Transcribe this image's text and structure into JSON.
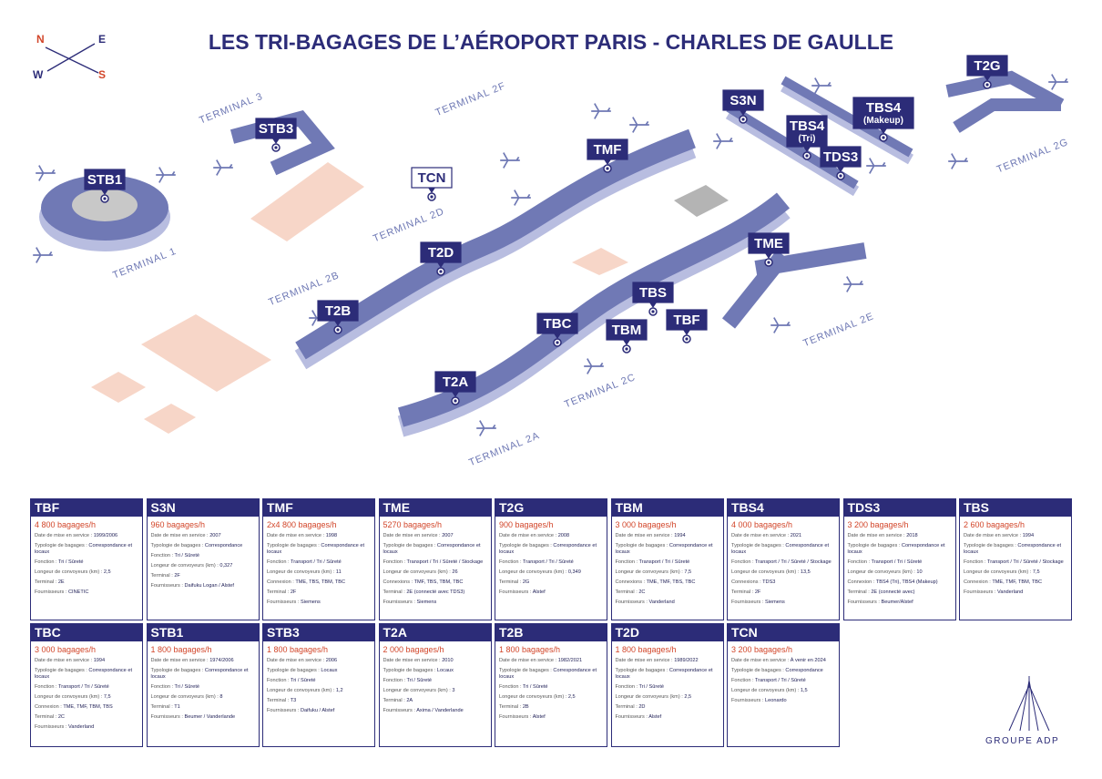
{
  "header": {
    "title": "LES TRI-BAGAGES DE L’AÉROPORT PARIS - CHARLES DE GAULLE"
  },
  "compass": {
    "n": "N",
    "e": "E",
    "w": "W",
    "s": "S"
  },
  "map": {
    "terminals": [
      "TERMINAL 3",
      "TERMINAL 2F",
      "TERMINAL 1",
      "TERMINAL 2D",
      "TERMINAL 2B",
      "TERMINAL 2E",
      "TERMINAL 2C",
      "TERMINAL 2A",
      "TERMINAL 2G"
    ],
    "markers": [
      {
        "label": "STB1"
      },
      {
        "label": "STB3"
      },
      {
        "label": "TCN"
      },
      {
        "label": "TMF"
      },
      {
        "label": "T2D"
      },
      {
        "label": "T2B"
      },
      {
        "label": "T2A"
      },
      {
        "label": "TBC"
      },
      {
        "label": "TBM"
      },
      {
        "label": "TBS"
      },
      {
        "label": "TBF"
      },
      {
        "label": "TME"
      },
      {
        "label": "S3N"
      },
      {
        "label": "TBS4",
        "sublabel": "(Tri)"
      },
      {
        "label": "TBS4",
        "sublabel": "(Makeup)"
      },
      {
        "label": "TDS3"
      },
      {
        "label": "T2G"
      }
    ]
  },
  "cards": [
    {
      "name": "TBF",
      "capacity": "4 800 bagages/h",
      "fields": [
        {
          "label": "Date de mise en service :",
          "value": "1999/2006"
        },
        {
          "label": "Typologie de bagages :",
          "value": "Correspondance et locaux"
        },
        {
          "label": "Fonction :",
          "value": "Tri / Sûreté"
        },
        {
          "label": "Longeur de convoyeurs (km) :",
          "value": "2,5"
        },
        {
          "label": "Terminal :",
          "value": "2E"
        },
        {
          "label": "Fournisseurs :",
          "value": "CINETIC"
        }
      ]
    },
    {
      "name": "S3N",
      "capacity": "960 bagages/h",
      "fields": [
        {
          "label": "Date de mise en service :",
          "value": "2007"
        },
        {
          "label": "Typologie de bagages :",
          "value": "Correspondance"
        },
        {
          "label": "Fonction :",
          "value": "Tri / Sûreté"
        },
        {
          "label": "Longeur de convoyeurs (km) :",
          "value": "0,327"
        },
        {
          "label": "Terminal :",
          "value": "2F"
        },
        {
          "label": "Fournisseurs :",
          "value": "Daifuku Logan / Alstef"
        }
      ]
    },
    {
      "name": "TMF",
      "capacity": "2x4 800 bagages/h",
      "fields": [
        {
          "label": "Date de mise en service :",
          "value": "1998"
        },
        {
          "label": "Typologie de bagages :",
          "value": "Correspondance et locaux"
        },
        {
          "label": "Fonction :",
          "value": "Transport / Tri / Sûreté"
        },
        {
          "label": "Longeur de convoyeurs (km) :",
          "value": "11"
        },
        {
          "label": "Connexion :",
          "value": "TME, TBS, TBM, TBC"
        },
        {
          "label": "Terminal :",
          "value": "2F"
        },
        {
          "label": "Fournisseurs :",
          "value": "Siemens"
        }
      ]
    },
    {
      "name": "TME",
      "capacity": "5270 bagages/h",
      "fields": [
        {
          "label": "Date de mise en service :",
          "value": "2007"
        },
        {
          "label": "Typologie de bagages :",
          "value": "Correspondance et locaux"
        },
        {
          "label": "Fonction :",
          "value": "Transport / Tri / Sûreté / Stockage"
        },
        {
          "label": "Longeur de convoyeurs (km) :",
          "value": "26"
        },
        {
          "label": "Connexions :",
          "value": "TMF, TBS, TBM, TBC"
        },
        {
          "label": "Terminal :",
          "value": "2E (connecté avec TDS3)"
        },
        {
          "label": "Fournisseurs :",
          "value": "Siemens"
        }
      ]
    },
    {
      "name": "T2G",
      "capacity": "900 bagages/h",
      "fields": [
        {
          "label": "Date de mise en service :",
          "value": "2008"
        },
        {
          "label": "Typologie de bagages :",
          "value": "Correspondance et locaux"
        },
        {
          "label": "Fonction :",
          "value": "Transport / Tri / Sûreté"
        },
        {
          "label": "Longeur de convoyeurs (km) :",
          "value": "0,349"
        },
        {
          "label": "Terminal :",
          "value": "2G"
        },
        {
          "label": "Fournisseurs :",
          "value": "Alstef"
        }
      ]
    },
    {
      "name": "TBM",
      "capacity": "3 000 bagages/h",
      "fields": [
        {
          "label": "Date de mise en service :",
          "value": "1994"
        },
        {
          "label": "Typologie de bagages :",
          "value": "Correspondance et locaux"
        },
        {
          "label": "Fonction :",
          "value": "Transport / Tri / Sûreté"
        },
        {
          "label": "Longeur de convoyeurs (km) :",
          "value": "7,5"
        },
        {
          "label": "Connexions :",
          "value": "TME, TMF, TBS, TBC"
        },
        {
          "label": "Terminal :",
          "value": "2C"
        },
        {
          "label": "Fournisseurs :",
          "value": "Vanderland"
        }
      ]
    },
    {
      "name": "TBS4",
      "capacity": "4 000 bagages/h",
      "fields": [
        {
          "label": "Date de mise en service :",
          "value": "2021"
        },
        {
          "label": "Typologie de bagages :",
          "value": "Correspondance et locaux"
        },
        {
          "label": "Fonction :",
          "value": "Transport / Tri / Sûreté / Stockage"
        },
        {
          "label": "Longeur de convoyeurs (km) :",
          "value": "13,5"
        },
        {
          "label": "Connexions :",
          "value": "TDS3"
        },
        {
          "label": "Terminal :",
          "value": "2F"
        },
        {
          "label": "Fournisseurs :",
          "value": "Siemens"
        }
      ]
    },
    {
      "name": "TDS3",
      "capacity": "3 200 bagages/h",
      "fields": [
        {
          "label": "Date de mise en service :",
          "value": "2018"
        },
        {
          "label": "Typologie de bagages :",
          "value": "Correspondance et locaux"
        },
        {
          "label": "Fonction :",
          "value": "Transport / Tri / Sûreté"
        },
        {
          "label": "Longeur de convoyeurs (km) :",
          "value": "10"
        },
        {
          "label": "Connexion :",
          "value": "TBS4 (Tri), TBS4 (Makeup)"
        },
        {
          "label": "Terminal :",
          "value": "2E (connecté avec)"
        },
        {
          "label": "Fournisseurs :",
          "value": "Beumer/Alstef"
        }
      ]
    },
    {
      "name": "TBS",
      "capacity": "2 600 bagages/h",
      "fields": [
        {
          "label": "Date de mise en service :",
          "value": "1994"
        },
        {
          "label": "Typologie de bagages :",
          "value": "Correspondance et locaux"
        },
        {
          "label": "Fonction :",
          "value": "Transport / Tri / Sûreté / Stockage"
        },
        {
          "label": "Longeur de convoyeurs (km) :",
          "value": "7,5"
        },
        {
          "label": "Connexion :",
          "value": "TME, TMF, TBM, TBC"
        },
        {
          "label": "Fournisseurs :",
          "value": "Vanderland"
        }
      ]
    },
    {
      "name": "TBC",
      "capacity": "3 000 bagages/h",
      "fields": [
        {
          "label": "Date de mise en service :",
          "value": "1994"
        },
        {
          "label": "Typologie de bagages :",
          "value": "Correspondance et locaux"
        },
        {
          "label": "Fonction :",
          "value": "Transport / Tri / Sûreté"
        },
        {
          "label": "Longeur de convoyeurs (km) :",
          "value": "7,5"
        },
        {
          "label": "Connexion :",
          "value": "TME, TMF, TBM, TBS"
        },
        {
          "label": "Terminal :",
          "value": "2C"
        },
        {
          "label": "Fournisseurs :",
          "value": "Vanderland"
        }
      ]
    },
    {
      "name": "STB1",
      "capacity": "1 800 bagages/h",
      "fields": [
        {
          "label": "Date de mise en service :",
          "value": "1974/2006"
        },
        {
          "label": "Typologie de bagages :",
          "value": "Correspondance et locaux"
        },
        {
          "label": "Fonction :",
          "value": "Tri / Sûreté"
        },
        {
          "label": "Longeur de convoyeurs (km) :",
          "value": "8"
        },
        {
          "label": "Terminal :",
          "value": "T1"
        },
        {
          "label": "Fournisseurs :",
          "value": "Beumer / Vanderlande"
        }
      ]
    },
    {
      "name": "STB3",
      "capacity": "1 800 bagages/h",
      "fields": [
        {
          "label": "Date de mise en service :",
          "value": "2006"
        },
        {
          "label": "Typologie de bagages :",
          "value": "Locaux"
        },
        {
          "label": "Fonction :",
          "value": "Tri / Sûreté"
        },
        {
          "label": "Longeur de convoyeurs (km) :",
          "value": "1,2"
        },
        {
          "label": "Terminal :",
          "value": "T3"
        },
        {
          "label": "Fournisseurs :",
          "value": "Daifuku / Alstef"
        }
      ]
    },
    {
      "name": "T2A",
      "capacity": "2 000 bagages/h",
      "fields": [
        {
          "label": "Date de mise en service :",
          "value": "2010"
        },
        {
          "label": "Typologie de bagages :",
          "value": "Locaux"
        },
        {
          "label": "Fonction :",
          "value": "Tri / Sûreté"
        },
        {
          "label": "Longeur de convoyeurs (km) :",
          "value": "3"
        },
        {
          "label": "Terminal :",
          "value": "2A"
        },
        {
          "label": "Fournisseurs :",
          "value": "Axima / Vanderlande"
        }
      ]
    },
    {
      "name": "T2B",
      "capacity": "1 800 bagages/h",
      "fields": [
        {
          "label": "Date de mise en service :",
          "value": "1982/2021"
        },
        {
          "label": "Typologie de bagages :",
          "value": "Correspondance et locaux"
        },
        {
          "label": "Fonction :",
          "value": "Tri / Sûreté"
        },
        {
          "label": "Longeur de convoyeurs (km) :",
          "value": "2,5"
        },
        {
          "label": "Terminal :",
          "value": "2B"
        },
        {
          "label": "Fournisseurs :",
          "value": "Alstef"
        }
      ]
    },
    {
      "name": "T2D",
      "capacity": "1 800 bagages/h",
      "fields": [
        {
          "label": "Date de mise en service :",
          "value": "1989/2022"
        },
        {
          "label": "Typologie de bagages :",
          "value": "Correspondance et locaux"
        },
        {
          "label": "Fonction :",
          "value": "Tri / Sûreté"
        },
        {
          "label": "Longeur de convoyeurs (km) :",
          "value": "2,5"
        },
        {
          "label": "Terminal :",
          "value": "2D"
        },
        {
          "label": "Fournisseurs :",
          "value": "Alstef"
        }
      ]
    },
    {
      "name": "TCN",
      "capacity": "3 200 bagages/h",
      "fields": [
        {
          "label": "Date de mise en service :",
          "value": "À venir en 2024"
        },
        {
          "label": "Typologie de bagages :",
          "value": "Correspondance"
        },
        {
          "label": "Fonction :",
          "value": "Transport / Tri / Sûreté"
        },
        {
          "label": "Longeur de convoyeurs (km) :",
          "value": "1,5"
        },
        {
          "label": "Fournisseurs :",
          "value": "Leonardo"
        }
      ]
    }
  ],
  "logo": {
    "text": "GROUPE ADP"
  }
}
